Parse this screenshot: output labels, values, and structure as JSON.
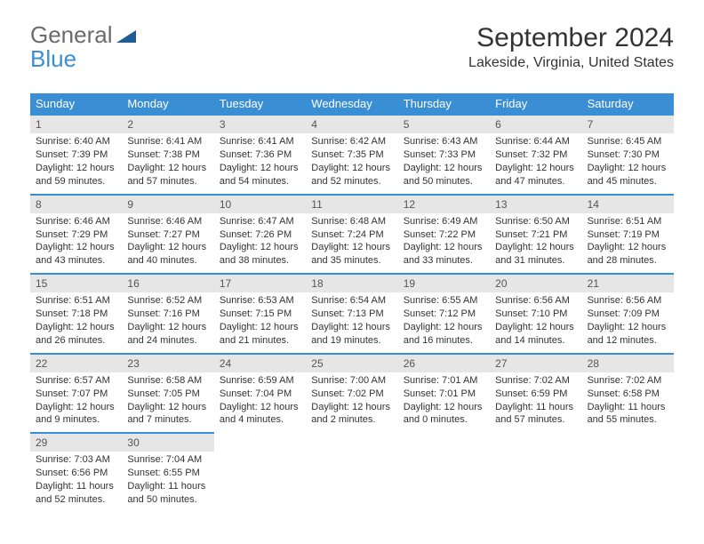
{
  "logo": {
    "text_general": "General",
    "text_blue": "Blue",
    "triangle_color": "#1f5d94"
  },
  "header": {
    "title": "September 2024",
    "subtitle": "Lakeside, Virginia, United States"
  },
  "colors": {
    "header_bg": "#3a8fd4",
    "header_text": "#ffffff",
    "daynum_bg": "#e6e6e6",
    "daynum_border": "#3a8fd4",
    "body_text": "#333333"
  },
  "dow": [
    "Sunday",
    "Monday",
    "Tuesday",
    "Wednesday",
    "Thursday",
    "Friday",
    "Saturday"
  ],
  "days": [
    {
      "n": "1",
      "sunrise": "Sunrise: 6:40 AM",
      "sunset": "Sunset: 7:39 PM",
      "d1": "Daylight: 12 hours",
      "d2": "and 59 minutes."
    },
    {
      "n": "2",
      "sunrise": "Sunrise: 6:41 AM",
      "sunset": "Sunset: 7:38 PM",
      "d1": "Daylight: 12 hours",
      "d2": "and 57 minutes."
    },
    {
      "n": "3",
      "sunrise": "Sunrise: 6:41 AM",
      "sunset": "Sunset: 7:36 PM",
      "d1": "Daylight: 12 hours",
      "d2": "and 54 minutes."
    },
    {
      "n": "4",
      "sunrise": "Sunrise: 6:42 AM",
      "sunset": "Sunset: 7:35 PM",
      "d1": "Daylight: 12 hours",
      "d2": "and 52 minutes."
    },
    {
      "n": "5",
      "sunrise": "Sunrise: 6:43 AM",
      "sunset": "Sunset: 7:33 PM",
      "d1": "Daylight: 12 hours",
      "d2": "and 50 minutes."
    },
    {
      "n": "6",
      "sunrise": "Sunrise: 6:44 AM",
      "sunset": "Sunset: 7:32 PM",
      "d1": "Daylight: 12 hours",
      "d2": "and 47 minutes."
    },
    {
      "n": "7",
      "sunrise": "Sunrise: 6:45 AM",
      "sunset": "Sunset: 7:30 PM",
      "d1": "Daylight: 12 hours",
      "d2": "and 45 minutes."
    },
    {
      "n": "8",
      "sunrise": "Sunrise: 6:46 AM",
      "sunset": "Sunset: 7:29 PM",
      "d1": "Daylight: 12 hours",
      "d2": "and 43 minutes."
    },
    {
      "n": "9",
      "sunrise": "Sunrise: 6:46 AM",
      "sunset": "Sunset: 7:27 PM",
      "d1": "Daylight: 12 hours",
      "d2": "and 40 minutes."
    },
    {
      "n": "10",
      "sunrise": "Sunrise: 6:47 AM",
      "sunset": "Sunset: 7:26 PM",
      "d1": "Daylight: 12 hours",
      "d2": "and 38 minutes."
    },
    {
      "n": "11",
      "sunrise": "Sunrise: 6:48 AM",
      "sunset": "Sunset: 7:24 PM",
      "d1": "Daylight: 12 hours",
      "d2": "and 35 minutes."
    },
    {
      "n": "12",
      "sunrise": "Sunrise: 6:49 AM",
      "sunset": "Sunset: 7:22 PM",
      "d1": "Daylight: 12 hours",
      "d2": "and 33 minutes."
    },
    {
      "n": "13",
      "sunrise": "Sunrise: 6:50 AM",
      "sunset": "Sunset: 7:21 PM",
      "d1": "Daylight: 12 hours",
      "d2": "and 31 minutes."
    },
    {
      "n": "14",
      "sunrise": "Sunrise: 6:51 AM",
      "sunset": "Sunset: 7:19 PM",
      "d1": "Daylight: 12 hours",
      "d2": "and 28 minutes."
    },
    {
      "n": "15",
      "sunrise": "Sunrise: 6:51 AM",
      "sunset": "Sunset: 7:18 PM",
      "d1": "Daylight: 12 hours",
      "d2": "and 26 minutes."
    },
    {
      "n": "16",
      "sunrise": "Sunrise: 6:52 AM",
      "sunset": "Sunset: 7:16 PM",
      "d1": "Daylight: 12 hours",
      "d2": "and 24 minutes."
    },
    {
      "n": "17",
      "sunrise": "Sunrise: 6:53 AM",
      "sunset": "Sunset: 7:15 PM",
      "d1": "Daylight: 12 hours",
      "d2": "and 21 minutes."
    },
    {
      "n": "18",
      "sunrise": "Sunrise: 6:54 AM",
      "sunset": "Sunset: 7:13 PM",
      "d1": "Daylight: 12 hours",
      "d2": "and 19 minutes."
    },
    {
      "n": "19",
      "sunrise": "Sunrise: 6:55 AM",
      "sunset": "Sunset: 7:12 PM",
      "d1": "Daylight: 12 hours",
      "d2": "and 16 minutes."
    },
    {
      "n": "20",
      "sunrise": "Sunrise: 6:56 AM",
      "sunset": "Sunset: 7:10 PM",
      "d1": "Daylight: 12 hours",
      "d2": "and 14 minutes."
    },
    {
      "n": "21",
      "sunrise": "Sunrise: 6:56 AM",
      "sunset": "Sunset: 7:09 PM",
      "d1": "Daylight: 12 hours",
      "d2": "and 12 minutes."
    },
    {
      "n": "22",
      "sunrise": "Sunrise: 6:57 AM",
      "sunset": "Sunset: 7:07 PM",
      "d1": "Daylight: 12 hours",
      "d2": "and 9 minutes."
    },
    {
      "n": "23",
      "sunrise": "Sunrise: 6:58 AM",
      "sunset": "Sunset: 7:05 PM",
      "d1": "Daylight: 12 hours",
      "d2": "and 7 minutes."
    },
    {
      "n": "24",
      "sunrise": "Sunrise: 6:59 AM",
      "sunset": "Sunset: 7:04 PM",
      "d1": "Daylight: 12 hours",
      "d2": "and 4 minutes."
    },
    {
      "n": "25",
      "sunrise": "Sunrise: 7:00 AM",
      "sunset": "Sunset: 7:02 PM",
      "d1": "Daylight: 12 hours",
      "d2": "and 2 minutes."
    },
    {
      "n": "26",
      "sunrise": "Sunrise: 7:01 AM",
      "sunset": "Sunset: 7:01 PM",
      "d1": "Daylight: 12 hours",
      "d2": "and 0 minutes."
    },
    {
      "n": "27",
      "sunrise": "Sunrise: 7:02 AM",
      "sunset": "Sunset: 6:59 PM",
      "d1": "Daylight: 11 hours",
      "d2": "and 57 minutes."
    },
    {
      "n": "28",
      "sunrise": "Sunrise: 7:02 AM",
      "sunset": "Sunset: 6:58 PM",
      "d1": "Daylight: 11 hours",
      "d2": "and 55 minutes."
    },
    {
      "n": "29",
      "sunrise": "Sunrise: 7:03 AM",
      "sunset": "Sunset: 6:56 PM",
      "d1": "Daylight: 11 hours",
      "d2": "and 52 minutes."
    },
    {
      "n": "30",
      "sunrise": "Sunrise: 7:04 AM",
      "sunset": "Sunset: 6:55 PM",
      "d1": "Daylight: 11 hours",
      "d2": "and 50 minutes."
    }
  ]
}
